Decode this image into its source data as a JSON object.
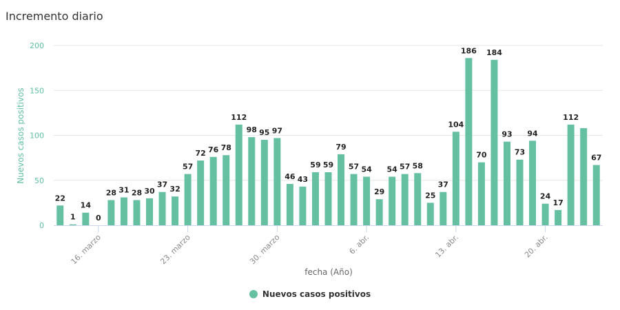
{
  "header": {
    "title": "Incremento diario"
  },
  "colors": {
    "bar": "#64c0a0",
    "grid": "#e6e6e6",
    "axis": "#ccd6eb",
    "ytick": "#5fc0a0"
  },
  "chart_data": {
    "type": "bar",
    "title": "Incremento diario",
    "xlabel": "fecha (Año)",
    "ylabel": "Nuevos casos positivos",
    "ylim": [
      0,
      200
    ],
    "yticks": [
      0,
      50,
      100,
      150,
      200
    ],
    "grid": true,
    "legend_position": "bottom-center",
    "x_tick_labels": [
      {
        "label": "16. marzo",
        "day_index": 3
      },
      {
        "label": "23. marzo",
        "day_index": 10
      },
      {
        "label": "30. marzo",
        "day_index": 17
      },
      {
        "label": "6. abr.",
        "day_index": 24
      },
      {
        "label": "13. abr.",
        "day_index": 31
      },
      {
        "label": "20. abr.",
        "day_index": 38
      }
    ],
    "series": [
      {
        "name": "Nuevos casos positivos",
        "values": [
          22,
          1,
          14,
          0,
          28,
          31,
          28,
          30,
          37,
          32,
          57,
          72,
          76,
          78,
          112,
          98,
          95,
          97,
          46,
          43,
          59,
          59,
          79,
          57,
          54,
          29,
          54,
          57,
          58,
          25,
          37,
          104,
          186,
          70,
          184,
          93,
          73,
          94,
          24,
          17,
          112,
          108,
          67
        ],
        "labels_shown": [
          true,
          true,
          true,
          true,
          true,
          true,
          true,
          true,
          true,
          true,
          true,
          true,
          true,
          true,
          true,
          true,
          true,
          true,
          true,
          true,
          true,
          true,
          true,
          true,
          true,
          true,
          true,
          true,
          true,
          true,
          true,
          true,
          true,
          true,
          true,
          true,
          true,
          true,
          true,
          true,
          true,
          false,
          true
        ]
      }
    ]
  },
  "legend": {
    "label": "Nuevos casos positivos"
  }
}
